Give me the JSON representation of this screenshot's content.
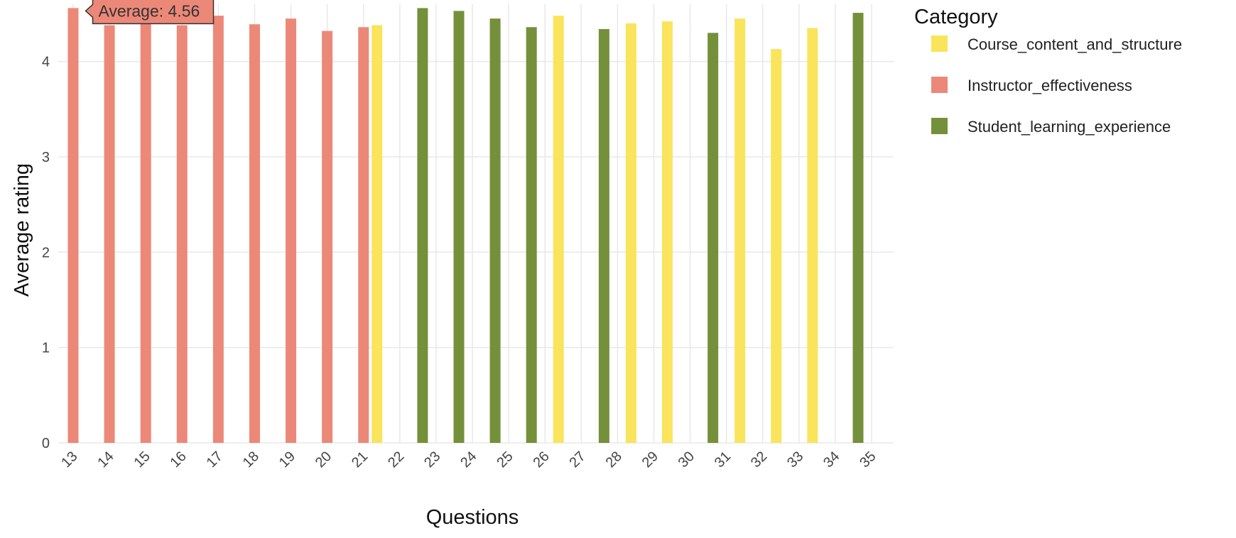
{
  "chart_data": {
    "type": "bar",
    "xlabel": "Questions",
    "ylabel": "Average rating",
    "ylim": [
      0,
      4.6
    ],
    "yticks": [
      0,
      1,
      2,
      3,
      4
    ],
    "grid": true,
    "legend": {
      "title": "Category",
      "position": "right",
      "entries": [
        {
          "name": "Course_content_and_structure",
          "color": "#F9E45B"
        },
        {
          "name": "Instructor_effectiveness",
          "color": "#EC8878"
        },
        {
          "name": "Student_learning_experience",
          "color": "#74903A"
        }
      ]
    },
    "categories": [
      "13",
      "14",
      "15",
      "16",
      "17",
      "18",
      "19",
      "20",
      "21",
      "22",
      "23",
      "24",
      "25",
      "26",
      "27",
      "28",
      "29",
      "30",
      "31",
      "32",
      "33",
      "34",
      "35"
    ],
    "series": [
      {
        "name": "Instructor_effectiveness",
        "color": "#EC8878",
        "offset": 0,
        "points": [
          {
            "x": "13",
            "y": 4.56
          },
          {
            "x": "14",
            "y": 4.38
          },
          {
            "x": "15",
            "y": 4.42
          },
          {
            "x": "16",
            "y": 4.38
          },
          {
            "x": "17",
            "y": 4.48
          },
          {
            "x": "18",
            "y": 4.39
          },
          {
            "x": "19",
            "y": 4.45
          },
          {
            "x": "20",
            "y": 4.32
          },
          {
            "x": "21",
            "y": 4.36
          }
        ]
      },
      {
        "name": "Course_content_and_structure",
        "color": "#F9E45B",
        "offset": 1,
        "points": [
          {
            "x": "21",
            "y": 4.38
          },
          {
            "x": "26",
            "y": 4.48
          },
          {
            "x": "28",
            "y": 4.4
          },
          {
            "x": "29",
            "y": 4.42
          },
          {
            "x": "31",
            "y": 4.45
          },
          {
            "x": "32",
            "y": 4.13
          },
          {
            "x": "33",
            "y": 4.35
          }
        ]
      },
      {
        "name": "Student_learning_experience",
        "color": "#74903A",
        "offset": -1,
        "points": [
          {
            "x": "23",
            "y": 4.56
          },
          {
            "x": "24",
            "y": 4.53
          },
          {
            "x": "25",
            "y": 4.45
          },
          {
            "x": "26",
            "y": 4.36
          },
          {
            "x": "28",
            "y": 4.34
          },
          {
            "x": "31",
            "y": 4.3
          },
          {
            "x": "35",
            "y": 4.51
          }
        ]
      }
    ],
    "tooltip": {
      "text": "Average: 4.56",
      "series": "Instructor_effectiveness",
      "x": "13"
    }
  }
}
